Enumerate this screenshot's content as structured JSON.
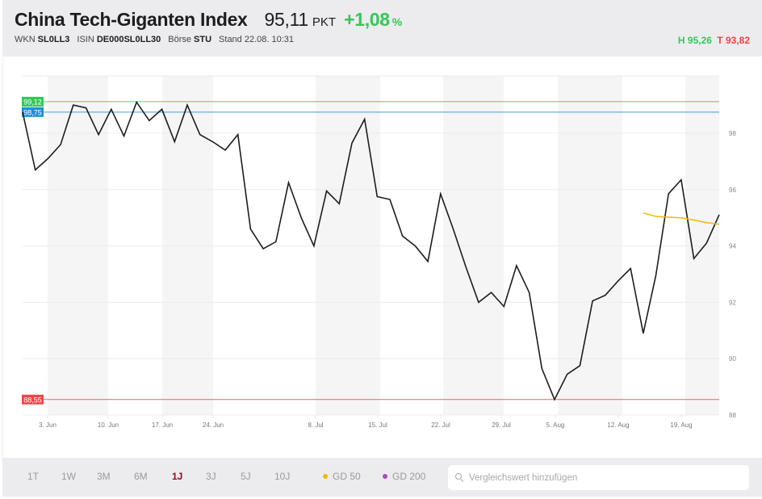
{
  "header": {
    "title": "China Tech-Giganten Index",
    "price": "95,11",
    "price_unit": "PKT",
    "change": "+1,08",
    "change_unit": "%",
    "wkn_label": "WKN",
    "wkn": "SL0LL3",
    "isin_label": "ISIN",
    "isin": "DE000SL0LL30",
    "exchange_label": "Börse",
    "exchange": "STU",
    "timestamp": "Stand 22.08. 10:31",
    "high_label": "H 95,26",
    "low_label": "T 93,82"
  },
  "colors": {
    "positive": "#34c759",
    "negative": "#ef4444",
    "line": "#1d1d1f",
    "high_line": "#34c759",
    "open_line": "#1e90d6",
    "low_line": "#ef4444",
    "gd50": "#f5b800",
    "gd200": "#b044c4",
    "active_range": "#8b0a2a"
  },
  "toolbar": {
    "ranges": [
      {
        "label": "1T",
        "active": false
      },
      {
        "label": "1W",
        "active": false
      },
      {
        "label": "3M",
        "active": false
      },
      {
        "label": "6M",
        "active": false
      },
      {
        "label": "1J",
        "active": true
      },
      {
        "label": "3J",
        "active": false
      },
      {
        "label": "5J",
        "active": false
      },
      {
        "label": "10J",
        "active": false
      }
    ],
    "legend": [
      {
        "label": "GD 50",
        "color": "#f5b800"
      },
      {
        "label": "GD 200",
        "color": "#b044c4"
      }
    ],
    "search_placeholder": "Vergleichswert hinzufügen"
  },
  "chart_data": {
    "type": "line",
    "title": "China Tech-Giganten Index",
    "xlabel": "",
    "ylabel": "",
    "ylim": [
      88,
      99.9
    ],
    "grid": true,
    "yticks": [
      88,
      90,
      92,
      94,
      96,
      98
    ],
    "xtick_labels": [
      "3. Jun",
      "10. Jun",
      "17. Jun",
      "24. Jun",
      "8. Jul",
      "15. Jul",
      "22. Jul",
      "29. Jul",
      "5. Aug",
      "12. Aug",
      "19. Aug"
    ],
    "reference_lines": [
      {
        "label": "99,12",
        "value": 99.12,
        "color": "#34c759"
      },
      {
        "label": "98,75",
        "value": 98.75,
        "color": "#1e90d6"
      },
      {
        "label": "88,55",
        "value": 88.55,
        "color": "#ef4444"
      }
    ],
    "series": [
      {
        "name": "China Tech-Giganten Index",
        "values": [
          98.75,
          96.7,
          97.1,
          97.6,
          99.0,
          98.9,
          97.95,
          98.85,
          97.9,
          99.1,
          98.45,
          98.85,
          97.7,
          99.0,
          97.95,
          97.7,
          97.4,
          97.95,
          94.6,
          93.9,
          94.15,
          96.25,
          95.0,
          94.0,
          95.95,
          95.5,
          97.65,
          98.5,
          95.75,
          95.65,
          94.35,
          94.0,
          93.45,
          95.85,
          94.6,
          93.25,
          92.0,
          92.35,
          91.85,
          93.3,
          92.35,
          89.65,
          88.55,
          89.45,
          89.75,
          92.05,
          92.25,
          92.75,
          93.2,
          90.9,
          92.95,
          95.85,
          96.35,
          93.55,
          94.1,
          95.11
        ]
      },
      {
        "name": "GD 50",
        "start_index": 49,
        "values": [
          95.17,
          95.05,
          95.02,
          95.0,
          94.92,
          94.83,
          94.77
        ]
      }
    ]
  }
}
